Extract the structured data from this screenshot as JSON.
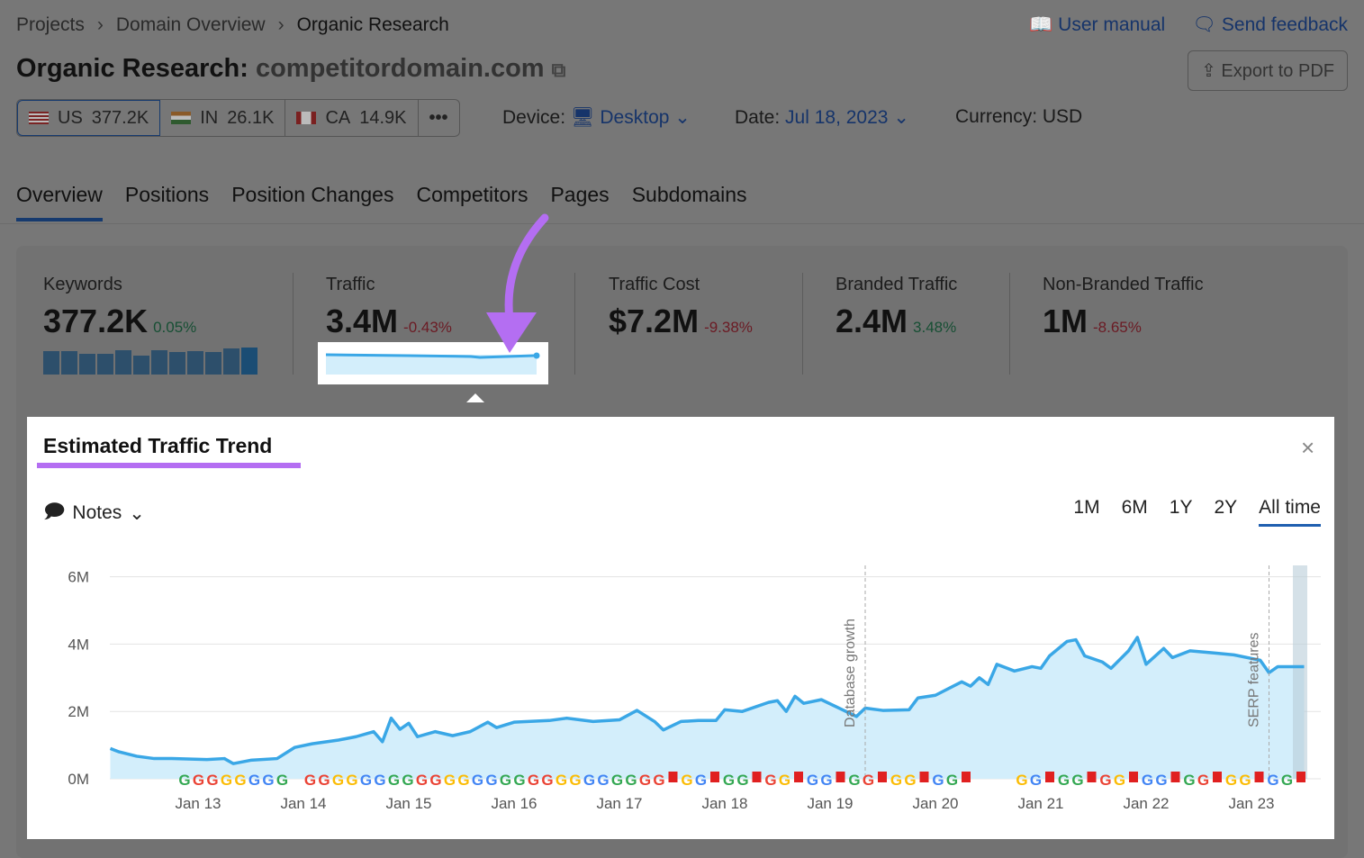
{
  "breadcrumb": [
    "Projects",
    "Domain Overview",
    "Organic Research"
  ],
  "header": {
    "user_manual": "User manual",
    "send_feedback": "Send feedback",
    "title_prefix": "Organic Research:",
    "domain": "competitordomain.com",
    "export": "Export to PDF"
  },
  "databases": [
    {
      "code": "US",
      "value": "377.2K"
    },
    {
      "code": "IN",
      "value": "26.1K"
    },
    {
      "code": "CA",
      "value": "14.9K"
    }
  ],
  "more": "•••",
  "device": {
    "label": "Device:",
    "value": "Desktop"
  },
  "date": {
    "label": "Date:",
    "value": "Jul 18, 2023"
  },
  "currency": "Currency: USD",
  "tabs": [
    "Overview",
    "Positions",
    "Position Changes",
    "Competitors",
    "Pages",
    "Subdomains"
  ],
  "metrics": [
    {
      "label": "Keywords",
      "value": "377.2K",
      "change": "0.05%",
      "trend": "up"
    },
    {
      "label": "Traffic",
      "value": "3.4M",
      "change": "-0.43%",
      "trend": "down"
    },
    {
      "label": "Traffic Cost",
      "value": "$7.2M",
      "change": "-9.38%",
      "trend": "down"
    },
    {
      "label": "Branded Traffic",
      "value": "2.4M",
      "change": "3.48%",
      "trend": "up"
    },
    {
      "label": "Non-Branded Traffic",
      "value": "1M",
      "change": "-8.65%",
      "trend": "down"
    }
  ],
  "popup": {
    "title": "Estimated Traffic Trend",
    "notes": "Notes",
    "ranges": [
      "1M",
      "6M",
      "1Y",
      "2Y",
      "All time"
    ],
    "active_range": "All time"
  },
  "colors": {
    "accent": "#1f5fb0",
    "line": "#3aa7e6",
    "area": "#d3eefb",
    "highlight": "#b46ef2"
  },
  "chart_data": {
    "type": "area",
    "ylim": [
      0,
      6000000
    ],
    "yticks": [
      "0M",
      "2M",
      "4M",
      "6M"
    ],
    "xticks": [
      "Jan 13",
      "Jan 14",
      "Jan 15",
      "Jan 16",
      "Jan 17",
      "Jan 18",
      "Jan 19",
      "Jan 20",
      "Jan 21",
      "Jan 22",
      "Jan 23"
    ],
    "grid": true,
    "annotations": [
      {
        "date": "2019-05",
        "label": "Database growth"
      },
      {
        "date": "2023-03",
        "label": "SERP features"
      }
    ],
    "x": [
      "2012-03",
      "2012-04",
      "2012-06",
      "2012-08",
      "2012-10",
      "2013-02",
      "2013-04",
      "2013-05",
      "2013-07",
      "2013-10",
      "2013-12",
      "2014-02",
      "2014-05",
      "2014-07",
      "2014-09",
      "2014-10",
      "2014-11",
      "2014-12",
      "2015-01",
      "2015-02",
      "2015-04",
      "2015-06",
      "2015-08",
      "2015-10",
      "2015-11",
      "2016-01",
      "2016-05",
      "2016-07",
      "2016-10",
      "2017-01",
      "2017-03",
      "2017-05",
      "2017-06",
      "2017-08",
      "2017-10",
      "2017-12",
      "2018-01",
      "2018-03",
      "2018-06",
      "2018-07",
      "2018-08",
      "2018-09",
      "2018-10",
      "2018-12",
      "2019-02",
      "2019-04",
      "2019-05",
      "2019-07",
      "2019-10",
      "2019-11",
      "2020-01",
      "2020-04",
      "2020-05",
      "2020-06",
      "2020-07",
      "2020-08",
      "2020-10",
      "2020-12",
      "2021-01",
      "2021-02",
      "2021-04",
      "2021-05",
      "2021-06",
      "2021-08",
      "2021-09",
      "2021-11",
      "2021-12",
      "2022-01",
      "2022-03",
      "2022-04",
      "2022-06",
      "2022-09",
      "2022-11",
      "2023-02",
      "2023-03",
      "2023-04",
      "2023-07"
    ],
    "values": [
      0.9,
      0.8,
      0.67,
      0.6,
      0.6,
      0.57,
      0.6,
      0.45,
      0.55,
      0.6,
      0.93,
      1.04,
      1.15,
      1.25,
      1.4,
      1.1,
      1.8,
      1.47,
      1.65,
      1.25,
      1.4,
      1.28,
      1.4,
      1.68,
      1.52,
      1.68,
      1.73,
      1.8,
      1.7,
      1.75,
      2.03,
      1.7,
      1.45,
      1.7,
      1.73,
      1.73,
      2.05,
      2.0,
      2.27,
      2.32,
      2.0,
      2.45,
      2.24,
      2.35,
      2.1,
      1.85,
      2.1,
      2.03,
      2.05,
      2.4,
      2.48,
      2.88,
      2.75,
      3.0,
      2.8,
      3.4,
      3.2,
      3.33,
      3.28,
      3.65,
      4.08,
      4.13,
      3.65,
      3.47,
      3.28,
      3.8,
      4.2,
      3.4,
      3.87,
      3.6,
      3.8,
      3.73,
      3.68,
      3.52,
      3.15,
      3.33,
      3.33
    ],
    "value_unit": "M"
  }
}
